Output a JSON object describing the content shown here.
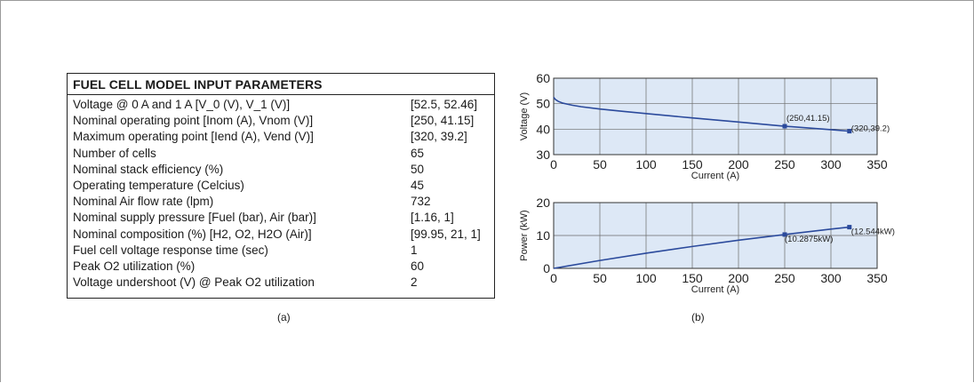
{
  "table": {
    "title": "FUEL CELL MODEL INPUT PARAMETERS",
    "rows": [
      {
        "label": "Voltage @ 0 A and 1 A [V_0 (V), V_1 (V)]",
        "value": "[52.5, 52.46]"
      },
      {
        "label": "Nominal operating point [Inom (A), Vnom (V)]",
        "value": "[250, 41.15]"
      },
      {
        "label": "Maximum operating point [Iend (A), Vend (V)]",
        "value": "[320, 39.2]"
      },
      {
        "label": "Number of cells",
        "value": "65"
      },
      {
        "label": "Nominal stack efficiency (%)",
        "value": "50"
      },
      {
        "label": "Operating temperature (Celcius)",
        "value": "45"
      },
      {
        "label": "Nominal Air flow rate (lpm)",
        "value": "732"
      },
      {
        "label": "Nominal supply pressure [Fuel (bar), Air (bar)]",
        "value": "[1.16, 1]"
      },
      {
        "label": "Nominal composition (%) [H2, O2, H2O (Air)]",
        "value": "[99.95, 21, 1]"
      },
      {
        "label": "Fuel cell voltage response time (sec)",
        "value": "1"
      },
      {
        "label": "Peak O2 utilization (%)",
        "value": "60"
      },
      {
        "label": "Voltage undershoot (V) @ Peak O2 utilization",
        "value": "2"
      }
    ]
  },
  "captions": {
    "a": "(a)",
    "b": "(b)"
  },
  "colors": {
    "line": "#2b4a9c",
    "plot_bg": "#dde8f6",
    "grid": "#6a6a6a"
  },
  "chart_data": [
    {
      "type": "line",
      "xlabel": "Current (A)",
      "ylabel": "Voltage (V)",
      "xlim": [
        0,
        350
      ],
      "ylim": [
        30,
        60
      ],
      "xticks": [
        0,
        50,
        100,
        150,
        200,
        250,
        300,
        350
      ],
      "yticks": [
        30,
        40,
        50,
        60
      ],
      "grid": true,
      "x": [
        0,
        2,
        5,
        10,
        20,
        30,
        50,
        75,
        100,
        150,
        200,
        250,
        300,
        320
      ],
      "y": [
        52.5,
        51.6,
        50.9,
        50.2,
        49.4,
        48.8,
        47.9,
        47.0,
        46.1,
        44.4,
        42.8,
        41.15,
        39.8,
        39.2
      ],
      "markers": [
        {
          "x": 250,
          "y": 41.15,
          "label": "(250,41.15)"
        },
        {
          "x": 320,
          "y": 39.2,
          "label": "(320,39.2)"
        }
      ]
    },
    {
      "type": "line",
      "xlabel": "Current (A)",
      "ylabel": "Power (kW)",
      "xlim": [
        0,
        350
      ],
      "ylim": [
        0,
        20
      ],
      "xticks": [
        0,
        50,
        100,
        150,
        200,
        250,
        300,
        350
      ],
      "yticks": [
        0,
        10,
        20
      ],
      "grid": true,
      "x": [
        0,
        50,
        100,
        150,
        200,
        250,
        300,
        320
      ],
      "y": [
        0,
        2.4,
        4.61,
        6.66,
        8.56,
        10.29,
        11.94,
        12.54
      ],
      "markers": [
        {
          "x": 250,
          "y": 10.29,
          "label": "(10.2875kW)"
        },
        {
          "x": 320,
          "y": 12.54,
          "label": "(12.544kW)"
        }
      ]
    }
  ]
}
